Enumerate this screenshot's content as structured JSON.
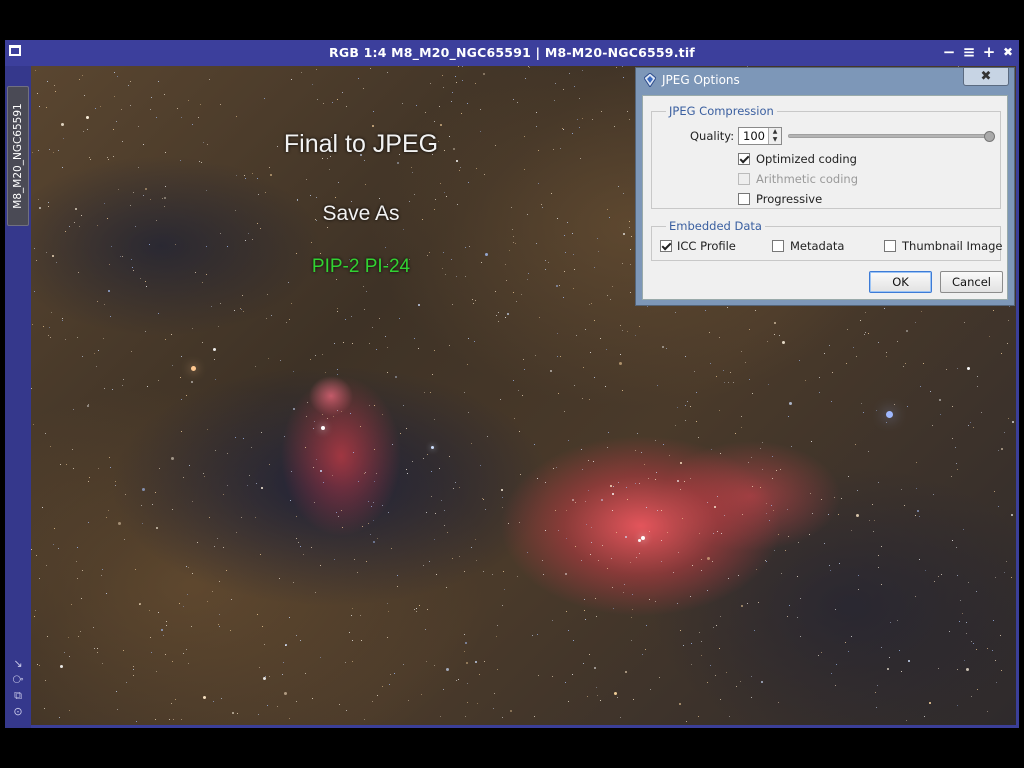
{
  "window": {
    "title": "RGB 1:4 M8_M20_NGC65591 | M8-M20-NGC6559.tif",
    "view_tab": "M8_M20_NGC65591",
    "controls": {
      "minimize": "−",
      "shade": "≡",
      "maximize": "+",
      "close": "✖"
    }
  },
  "overlay": {
    "line1": "Final to JPEG",
    "line2": "Save As",
    "line3": "PIP-2 PI-24"
  },
  "dialog": {
    "title": "JPEG Options",
    "close": "✖",
    "compression": {
      "label": "JPEG Compression",
      "quality_label": "Quality:",
      "quality_value": "100",
      "quality_fraction": 1.0,
      "optimized": {
        "label": "Optimized coding",
        "checked": true,
        "enabled": true
      },
      "arithmetic": {
        "label": "Arithmetic coding",
        "checked": false,
        "enabled": false
      },
      "progressive": {
        "label": "Progressive",
        "checked": false,
        "enabled": true
      }
    },
    "embedded": {
      "label": "Embedded Data",
      "icc": {
        "label": "ICC Profile",
        "checked": true
      },
      "metadata": {
        "label": "Metadata",
        "checked": false
      },
      "thumbnail": {
        "label": "Thumbnail Image",
        "checked": false
      }
    },
    "ok": "OK",
    "cancel": "Cancel"
  },
  "colors": {
    "titlebar": "#3c3f9c",
    "overlay_green": "#32d232",
    "dialog_frame": "#7d97b8"
  }
}
